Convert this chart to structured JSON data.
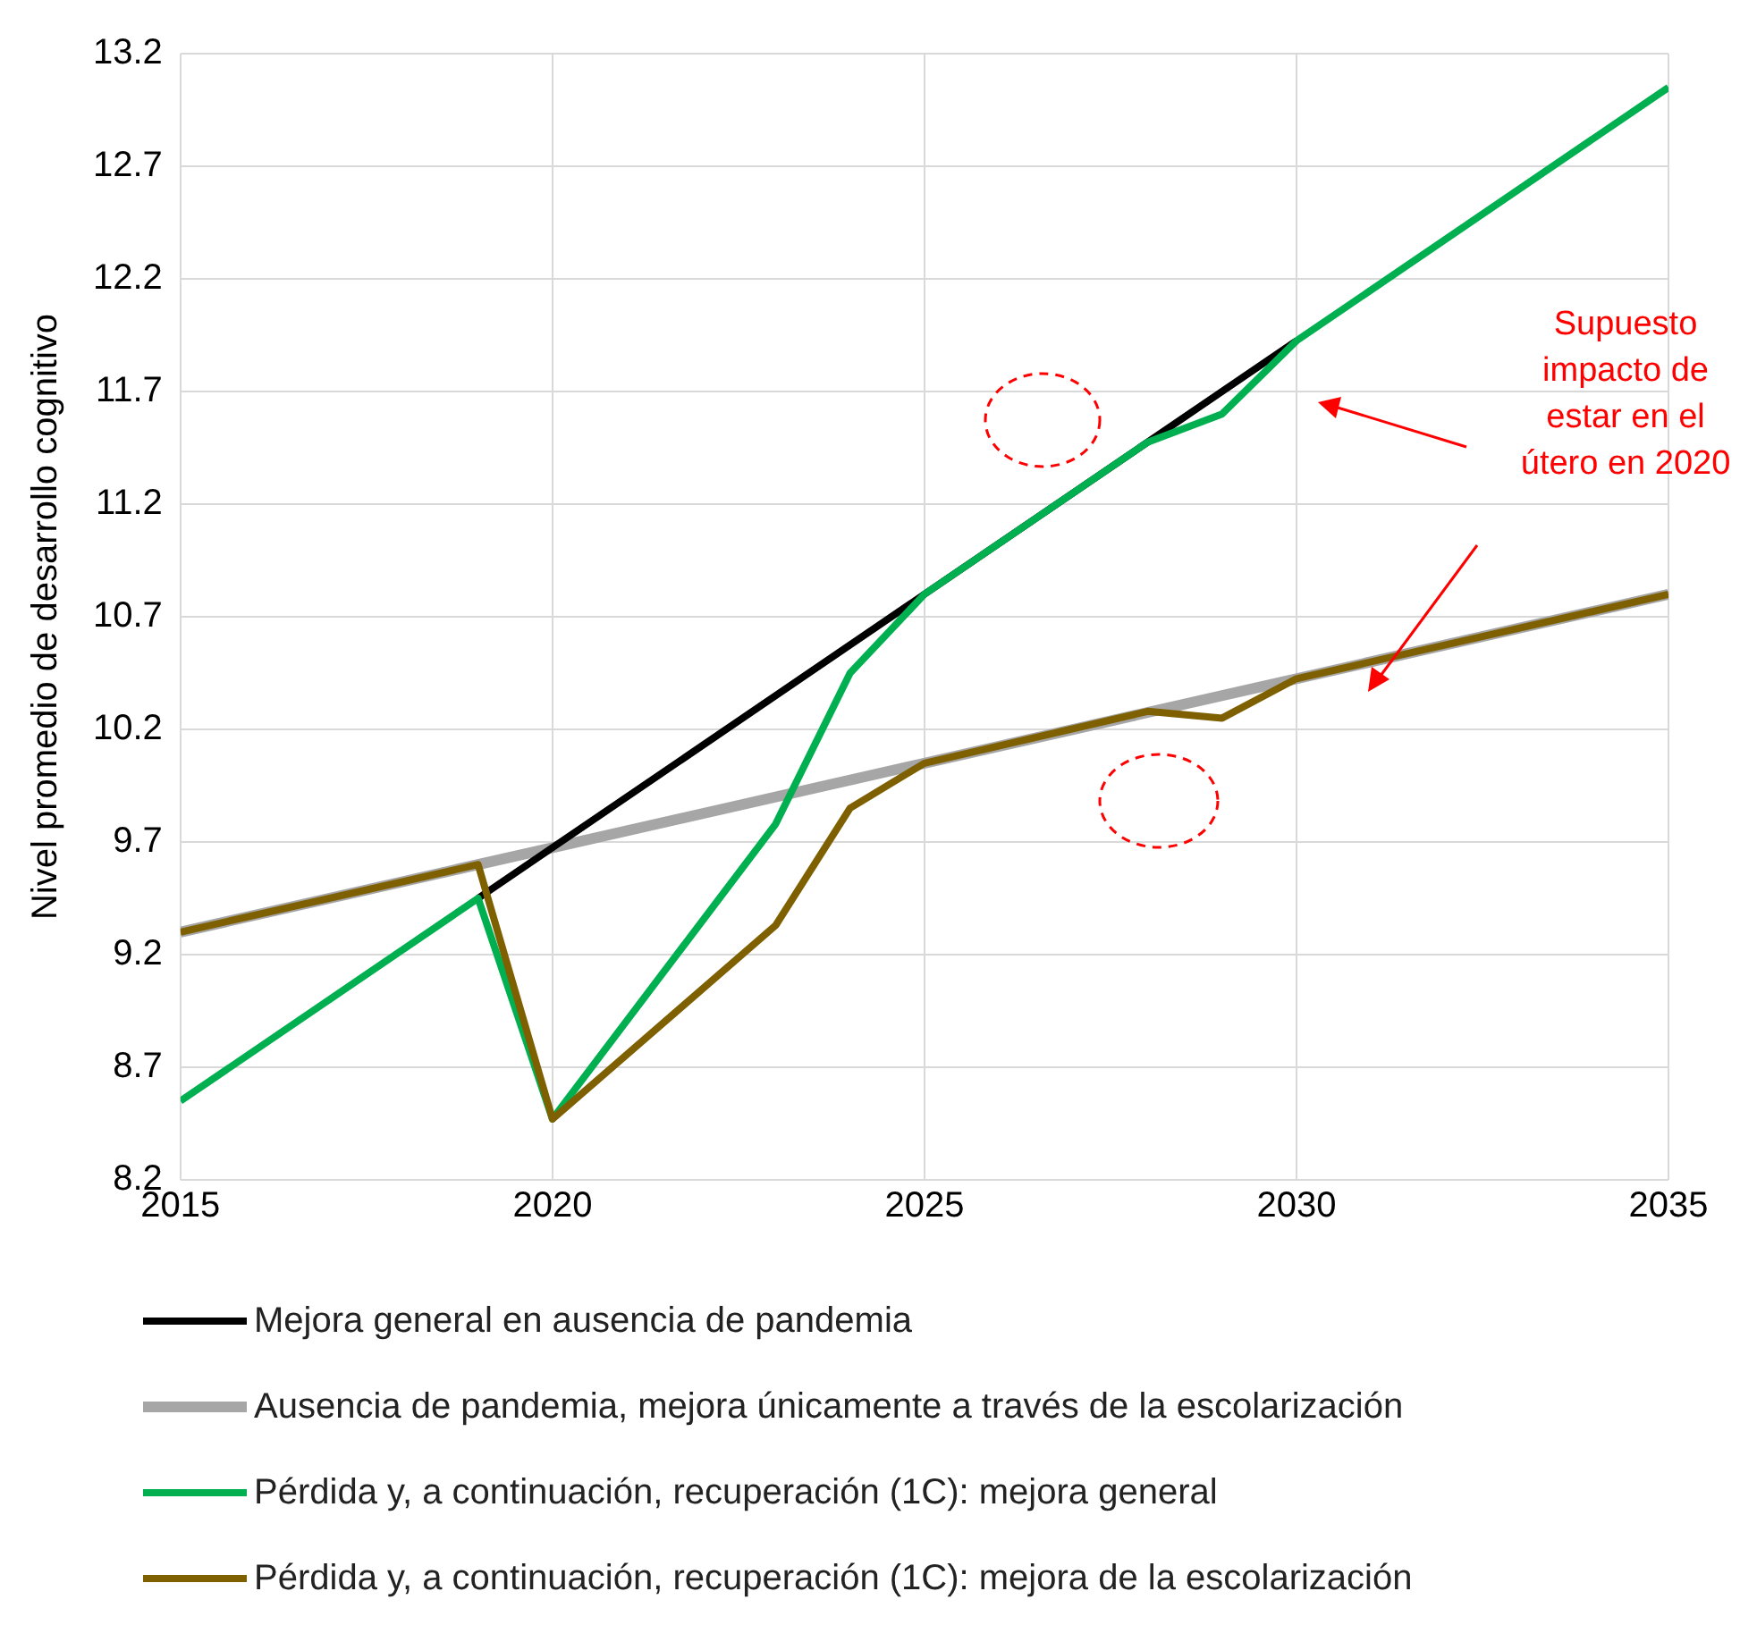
{
  "chart_data": {
    "type": "line",
    "ylabel": "Nivel promedio de desarrollo cognitivo",
    "xlim": [
      2015,
      2035
    ],
    "xticks": [
      2015,
      2020,
      2025,
      2030,
      2035
    ],
    "ylim": [
      8.2,
      13.2
    ],
    "yticks": [
      8.2,
      8.7,
      9.2,
      9.7,
      10.2,
      10.7,
      11.2,
      11.7,
      12.2,
      12.7,
      13.2
    ],
    "grid": true,
    "legend": "bottom",
    "marker": "none",
    "line_style": "solid",
    "annotations": [
      "Supuesto impacto de estar en el útero en 2020"
    ],
    "series": [
      {
        "name": "Mejora general en ausencia de pandemia",
        "color": "#000000",
        "x": [
          2019,
          2020,
          2025,
          2030
        ],
        "values": [
          9.45,
          9.675,
          10.8,
          11.925
        ]
      },
      {
        "name": "Ausencia de pandemia, mejora únicamente a través de la escolarización",
        "color": "#a6a6a6",
        "x": [
          2015,
          2020,
          2025,
          2030,
          2035
        ],
        "values": [
          9.3,
          9.675,
          10.05,
          10.425,
          10.8
        ]
      },
      {
        "name": "Pérdida y, a continuación, recuperación (1C): mejora general",
        "color": "#00b050",
        "x": [
          2015,
          2019,
          2020,
          2023,
          2024,
          2025,
          2028,
          2029,
          2030,
          2035
        ],
        "values": [
          8.55,
          9.45,
          8.47,
          9.78,
          10.45,
          10.8,
          11.475,
          11.6,
          11.925,
          13.05
        ]
      },
      {
        "name": "Pérdida y, a continuación, recuperación (1C): mejora de la escolarización",
        "color": "#7f6000",
        "x": [
          2015,
          2019,
          2020,
          2023,
          2024,
          2025,
          2028,
          2029,
          2030,
          2035
        ],
        "values": [
          9.3,
          9.6,
          8.47,
          9.33,
          9.85,
          10.05,
          10.28,
          10.25,
          10.425,
          10.8
        ]
      }
    ]
  }
}
